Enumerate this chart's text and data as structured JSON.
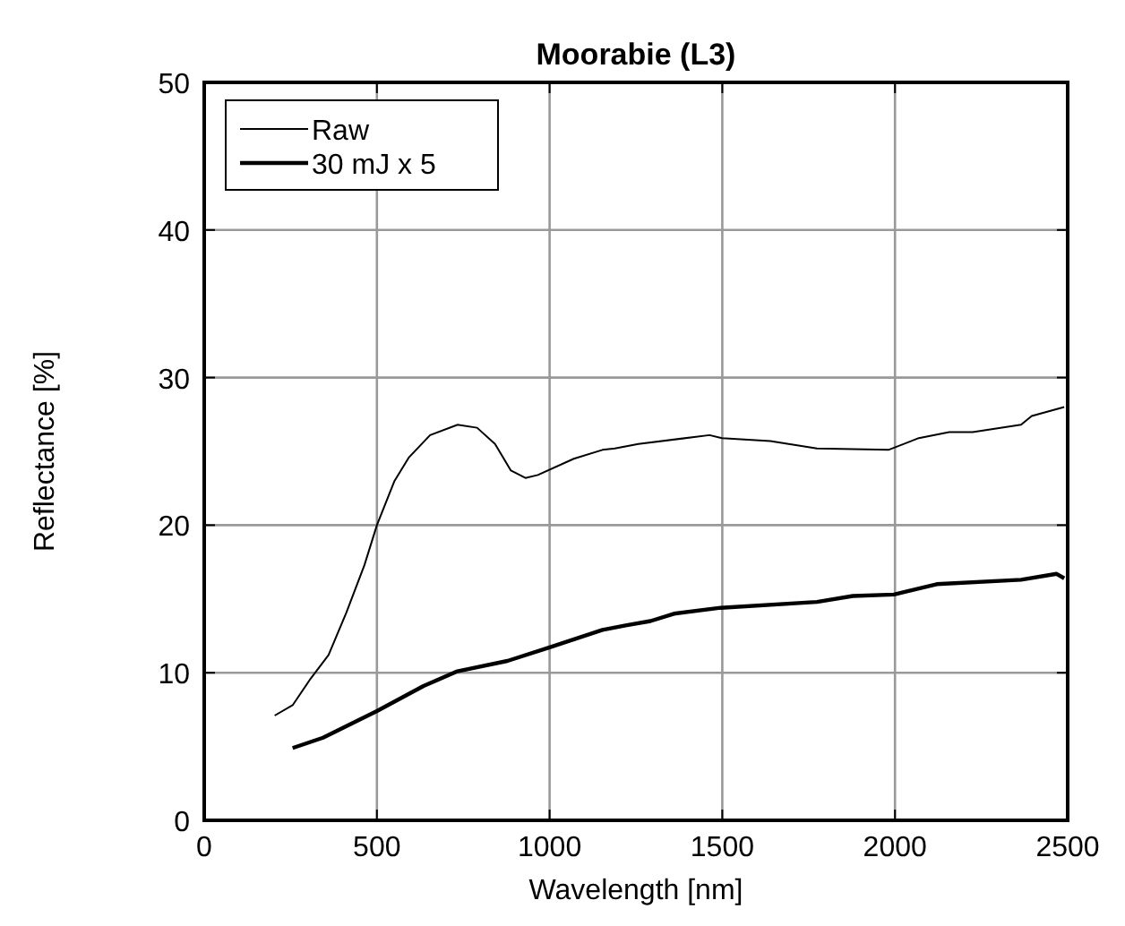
{
  "chart_data": {
    "type": "line",
    "title": "Moorabie (L3)",
    "xlabel": "Wavelength [nm]",
    "ylabel": "Reflectance [%]",
    "xlim": [
      0,
      2500
    ],
    "ylim": [
      0,
      50
    ],
    "xticks": [
      0,
      500,
      1000,
      1500,
      2000,
      2500
    ],
    "yticks": [
      0,
      10,
      20,
      30,
      40,
      50
    ],
    "grid": true,
    "legend": "top left",
    "line_style": "solid",
    "series": [
      {
        "name": "Raw",
        "color": "#000000",
        "x": [
          204,
          256,
          308,
          360,
          412,
          464,
          500,
          551,
          593,
          654,
          733,
          790,
          842,
          888,
          930,
          966,
          1070,
          1153,
          1189,
          1257,
          1463,
          1499,
          1639,
          1774,
          1981,
          2069,
          2157,
          2225,
          2365,
          2396,
          2490
        ],
        "values": [
          7.1,
          7.8,
          9.6,
          11.2,
          14.1,
          17.3,
          20,
          23,
          24.6,
          26.1,
          26.8,
          26.6,
          25.5,
          23.7,
          23.2,
          23.4,
          24.5,
          25.1,
          25.2,
          25.5,
          26.1,
          25.9,
          25.7,
          25.2,
          25.1,
          25.9,
          26.3,
          26.3,
          26.8,
          27.4,
          28.0
        ]
      },
      {
        "name": "30 mJ x 5",
        "color": "#000000",
        "x": [
          256,
          344,
          500,
          635,
          733,
          878,
          998,
          1153,
          1220,
          1292,
          1360,
          1495,
          1774,
          1878,
          1997,
          2121,
          2365,
          2468,
          2490
        ],
        "values": [
          4.9,
          5.6,
          7.4,
          9.1,
          10.1,
          10.8,
          11.7,
          12.9,
          13.2,
          13.5,
          14.0,
          14.4,
          14.8,
          15.2,
          15.3,
          16.0,
          16.3,
          16.7,
          16.4
        ]
      }
    ]
  }
}
